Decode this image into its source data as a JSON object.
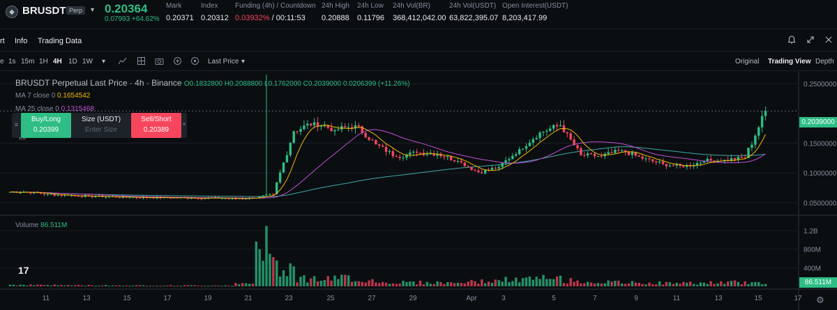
{
  "header": {
    "logo_glyph": "◆",
    "symbol": "BRUSDT",
    "badge": "Perp",
    "caret": "▾",
    "last_price": "0.20364",
    "change": "0.07993 +64.62%",
    "stats": [
      {
        "label": "Mark",
        "value": "0.20371"
      },
      {
        "label": "Index",
        "value": "0.20312"
      },
      {
        "label": "Funding (4h) / Countdown",
        "value_red": "0.03932%",
        "value": " / 00:11:53"
      },
      {
        "label": "24h High",
        "value": "0.20888"
      },
      {
        "label": "24h Low",
        "value": "0.11796"
      },
      {
        "label": "24h Vol(BR)",
        "value": "368,412,042.00"
      },
      {
        "label": "24h Vol(USDT)",
        "value": "63,822,395.07"
      },
      {
        "label": "Open Interest(USDT)",
        "value": "8,203,417.99"
      }
    ]
  },
  "tabs": {
    "chart": "rt",
    "info": "Info",
    "trading_data": "Trading Data",
    "icons": [
      "bell-icon",
      "expand-icon",
      "window-icon"
    ]
  },
  "toolbar": {
    "timeframes": [
      "e",
      "1s",
      "15m",
      "1H",
      "4H",
      "1D",
      "1W"
    ],
    "active_timeframe": "4H",
    "dropdown": "▾",
    "price_type": "Last Price",
    "views": [
      "Original",
      "Trading View",
      "Depth"
    ],
    "active_view": "Trading View"
  },
  "legend": {
    "title": "BRUSDT Perpetual Last Price · 4h · Binance",
    "ohlc": "O0.1832800 H0.2088800 L0.1762000 C0.2039000 0.0206399 (+11.26%)",
    "ma7_label": "MA 7 close 0",
    "ma7_value": "0.1654542",
    "ma25_label": "MA 25 close 0",
    "ma25_value": "0.1315468",
    "volume_label": "Volume",
    "volume_value": "86.511M"
  },
  "order_widget": {
    "handle": "≡",
    "close": "×",
    "expand": "«»",
    "buy_label": "Buy/Long",
    "buy_price": "0.20399",
    "size_label": "Size (USDT)",
    "size_placeholder": "Enter Size",
    "sell_label": "Sell/Short",
    "sell_price": "0.20389"
  },
  "axis": {
    "price_ticks": [
      "0.2500000",
      "0.1500000",
      "0.1000000",
      "0.0500000"
    ],
    "current_price": "0.2039000",
    "volume_ticks": [
      "1.2B",
      "800M",
      "400M"
    ],
    "current_volume": "86.511M",
    "x_ticks": [
      "11",
      "13",
      "15",
      "17",
      "19",
      "21",
      "23",
      "25",
      "27",
      "29",
      "Apr",
      "3",
      "5",
      "7",
      "9",
      "11",
      "13",
      "15",
      "17"
    ]
  },
  "tv_logo": "17",
  "gear_glyph": "⚙",
  "colors": {
    "up": "#2ebd85",
    "down": "#f6465d",
    "ma7": "#f0b90b",
    "ma25": "#c04fd6",
    "ma99": "#3fa7a8",
    "background": "#0b0e11"
  },
  "chart_data": {
    "type": "candlestick",
    "price_axis_ticks": [
      0.25,
      0.15,
      0.1,
      0.05
    ],
    "ylim": [
      0.03,
      0.27
    ],
    "volume_ylim": [
      0,
      1500000000
    ],
    "x_categories": [
      "Mar 10",
      "Mar 11",
      "Mar 12",
      "Mar 13",
      "Mar 14",
      "Mar 15",
      "Mar 16",
      "Mar 17",
      "Mar 18",
      "Mar 19",
      "Mar 20",
      "Mar 21",
      "Mar 22",
      "Mar 23",
      "Mar 24",
      "Mar 25",
      "Mar 26",
      "Mar 27",
      "Mar 28",
      "Mar 29",
      "Mar 30",
      "Mar 31",
      "Apr 1",
      "Apr 2",
      "Apr 3",
      "Apr 4",
      "Apr 5",
      "Apr 6",
      "Apr 7",
      "Apr 8",
      "Apr 9",
      "Apr 10",
      "Apr 11",
      "Apr 12",
      "Apr 13",
      "Apr 14",
      "Apr 15"
    ],
    "close_per_day": [
      0.068,
      0.064,
      0.062,
      0.061,
      0.06,
      0.059,
      0.059,
      0.058,
      0.058,
      0.058,
      0.057,
      0.058,
      0.064,
      0.17,
      0.185,
      0.172,
      0.18,
      0.148,
      0.127,
      0.134,
      0.132,
      0.12,
      0.101,
      0.11,
      0.14,
      0.168,
      0.18,
      0.13,
      0.128,
      0.138,
      0.124,
      0.115,
      0.11,
      0.12,
      0.122,
      0.125,
      0.204
    ],
    "volume_per_day_m": [
      40,
      35,
      30,
      25,
      25,
      22,
      20,
      20,
      20,
      20,
      22,
      60,
      1300,
      520,
      200,
      180,
      220,
      150,
      100,
      100,
      95,
      90,
      110,
      130,
      160,
      180,
      200,
      140,
      110,
      100,
      90,
      85,
      80,
      85,
      90,
      100,
      86.5
    ],
    "series": [
      {
        "name": "MA 7 close 0",
        "last": 0.1654542
      },
      {
        "name": "MA 25 close 0",
        "last": 0.1315468
      }
    ]
  }
}
